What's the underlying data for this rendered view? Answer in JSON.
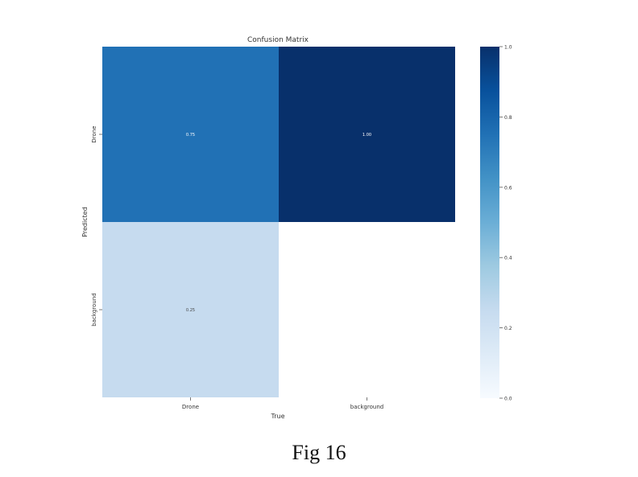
{
  "caption": "Fig 16",
  "chart_data": {
    "type": "heatmap",
    "title": "Confusion Matrix",
    "xlabel": "True",
    "ylabel": "Predicted",
    "x_categories": [
      "Drone",
      "background"
    ],
    "y_categories": [
      "Drone",
      "background"
    ],
    "values": [
      [
        0.75,
        1.0
      ],
      [
        0.25,
        null
      ]
    ],
    "cell_labels": [
      [
        "0.75",
        "1.00"
      ],
      [
        "0.25",
        ""
      ]
    ],
    "colormap": "Blues",
    "colorbar": {
      "range": [
        0.0,
        1.0
      ],
      "ticks": [
        0.0,
        0.2,
        0.4,
        0.6,
        0.8,
        1.0
      ],
      "tick_labels": [
        "0.0",
        "0.2",
        "0.4",
        "0.6",
        "0.8",
        "1.0"
      ]
    },
    "colors": {
      "low": "#f7fbff",
      "high": "#08306b",
      "cell_075": "#2171b5",
      "cell_100": "#08306b",
      "cell_025": "#c6dbef"
    }
  }
}
